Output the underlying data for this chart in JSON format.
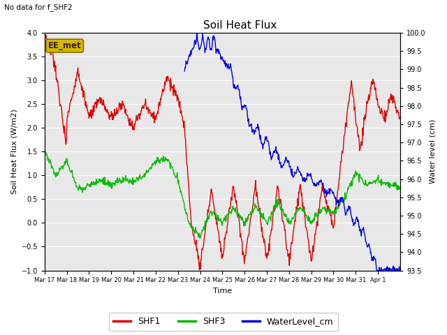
{
  "title": "Soil Heat Flux",
  "subtitle": "No data for f_SHF2",
  "ylabel_left": "Soil Heat Flux (W/m2)",
  "ylabel_right": "Water level (cm)",
  "xlabel": "Time",
  "ylim_left": [
    -1.0,
    4.0
  ],
  "ylim_right": [
    93.5,
    100.0
  ],
  "bg_color": "#e8e8e8",
  "fig_color": "#ffffff",
  "legend_items": [
    "SHF1",
    "SHF3",
    "WaterLevel_cm"
  ],
  "legend_colors": [
    "#dd0000",
    "#00bb00",
    "#0000dd"
  ],
  "annotation_text": "EE_met",
  "annotation_box_facecolor": "#d4b800",
  "annotation_box_edgecolor": "#8b7000",
  "x_tick_labels": [
    "Mar 17",
    "Mar 18",
    "Mar 19",
    "Mar 20",
    "Mar 21",
    "Mar 22",
    "Mar 23",
    "Mar 24",
    "Mar 25",
    "Mar 26",
    "Mar 27",
    "Mar 28",
    "Mar 29",
    "Mar 30",
    "Mar 31",
    "Apr 1"
  ],
  "grid_color": "#ffffff",
  "line_width": 1.0,
  "title_fontsize": 11,
  "label_fontsize": 8,
  "tick_fontsize": 7,
  "legend_fontsize": 9
}
